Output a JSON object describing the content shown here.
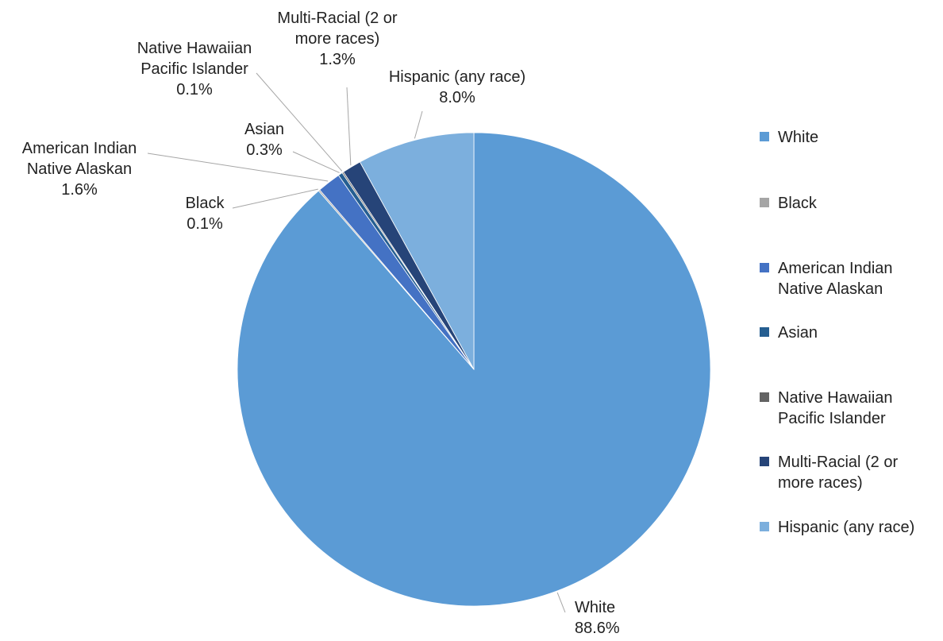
{
  "chart_data": {
    "type": "pie",
    "title": "",
    "slices": [
      {
        "name": "White",
        "value": 88.6,
        "label": "88.6%",
        "color": "#5B9BD5"
      },
      {
        "name": "Black",
        "value": 0.1,
        "label": "0.1%",
        "color": "#A5A5A5"
      },
      {
        "name": "American Indian Native Alaskan",
        "label_lines": [
          "American Indian",
          "Native Alaskan"
        ],
        "value": 1.6,
        "label": "1.6%",
        "color": "#4472C4"
      },
      {
        "name": "Asian",
        "value": 0.3,
        "label": "0.3%",
        "color": "#255E91"
      },
      {
        "name": "Native Hawaiian Pacific Islander",
        "label_lines": [
          "Native Hawaiian",
          "Pacific Islander"
        ],
        "value": 0.1,
        "label": "0.1%",
        "color": "#636363"
      },
      {
        "name": "Multi-Racial (2 or more races)",
        "label_lines": [
          "Multi-Racial (2 or",
          "more races)"
        ],
        "value": 1.3,
        "label": "1.3%",
        "color": "#264478"
      },
      {
        "name": "Hispanic (any race)",
        "value": 8.0,
        "label": "8.0%",
        "color": "#7CAFDD"
      }
    ],
    "legend": {
      "position": "right",
      "entries": [
        {
          "lines": [
            "White"
          ],
          "color": "#5B9BD5"
        },
        {
          "lines": [
            "Black"
          ],
          "color": "#A5A5A5"
        },
        {
          "lines": [
            "American Indian",
            "Native Alaskan"
          ],
          "color": "#4472C4"
        },
        {
          "lines": [
            "Asian"
          ],
          "color": "#255E91"
        },
        {
          "lines": [
            "Native Hawaiian",
            "Pacific Islander"
          ],
          "color": "#636363"
        },
        {
          "lines": [
            "Multi-Racial (2 or",
            "more races)"
          ],
          "color": "#264478"
        },
        {
          "lines": [
            "Hispanic (any race)"
          ],
          "color": "#7CAFDD"
        }
      ]
    }
  }
}
